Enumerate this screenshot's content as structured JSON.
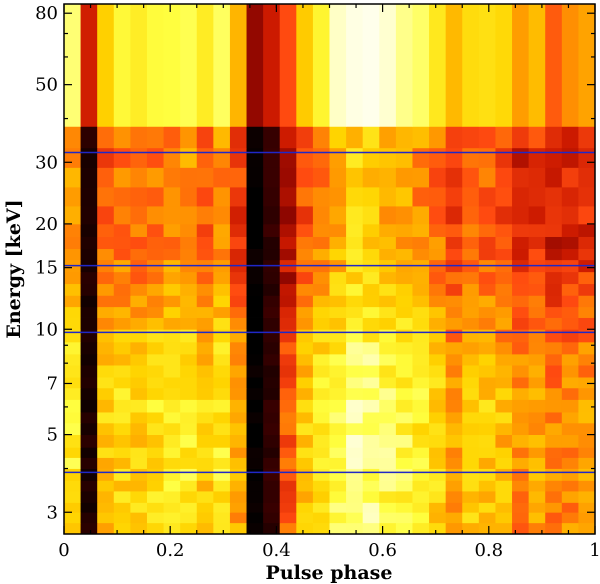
{
  "chart_data": {
    "type": "heatmap",
    "title": "",
    "xlabel": "Pulse phase",
    "ylabel": "Energy [keV]",
    "xlim": [
      0,
      1
    ],
    "ylim_keV": [
      2.6,
      85
    ],
    "y_scale": "log",
    "x_ticks": [
      0,
      0.2,
      0.4,
      0.6,
      0.8,
      1
    ],
    "x_tick_labels": [
      "0",
      "0.2",
      "0.4",
      "0.6",
      "0.8",
      "1"
    ],
    "y_ticks": [
      3,
      5,
      7,
      10,
      15,
      20,
      30,
      50,
      80
    ],
    "y_tick_labels": [
      "3",
      "5",
      "7",
      "10",
      "15",
      "20",
      "30",
      "50",
      "80"
    ],
    "n_phase_bins": 32,
    "energy_bin_edges_keV": [
      2.6,
      2.8,
      3.0,
      3.2,
      3.45,
      3.7,
      4.0,
      4.3,
      4.6,
      5.0,
      5.4,
      5.8,
      6.3,
      6.8,
      7.3,
      7.9,
      8.5,
      9.2,
      10.0,
      10.8,
      11.6,
      12.5,
      13.5,
      14.6,
      15.8,
      17.0,
      18.4,
      20.0,
      22.5,
      25.5,
      29.0,
      33.0,
      38.0,
      85.0
    ],
    "colormap": [
      "#000000",
      "#7a0000",
      "#cc1a00",
      "#ff4a10",
      "#ff9a00",
      "#ffd400",
      "#ffff40",
      "#ffffc8",
      "#ffffff"
    ],
    "reference_lines_keV": [
      3.9,
      9.8,
      15.2,
      32.0
    ],
    "reference_line_color": "#1f28c8",
    "phase_profile": [
      0.72,
      0.05,
      0.55,
      0.62,
      0.6,
      0.66,
      0.7,
      0.74,
      0.58,
      0.72,
      0.45,
      0.0,
      0.08,
      0.18,
      0.55,
      0.68,
      0.82,
      0.96,
      0.92,
      0.85,
      0.8,
      0.74,
      0.62,
      0.42,
      0.58,
      0.55,
      0.5,
      0.35,
      0.42,
      0.3,
      0.35,
      0.38
    ],
    "energy_profile": [
      0.62,
      0.63,
      0.64,
      0.64,
      0.65,
      0.66,
      0.66,
      0.66,
      0.65,
      0.66,
      0.68,
      0.68,
      0.67,
      0.65,
      0.62,
      0.6,
      0.55,
      0.5,
      0.44,
      0.4,
      0.38,
      0.34,
      0.3,
      0.26,
      0.24,
      0.2,
      0.2,
      0.18,
      0.18,
      0.2,
      0.2,
      0.22,
      0.5
    ]
  }
}
